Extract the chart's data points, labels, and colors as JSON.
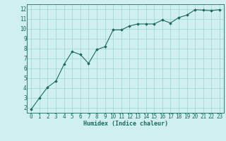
{
  "x": [
    0,
    1,
    2,
    3,
    4,
    5,
    6,
    7,
    8,
    9,
    10,
    11,
    12,
    13,
    14,
    15,
    16,
    17,
    18,
    19,
    20,
    21,
    22,
    23
  ],
  "y": [
    1.85,
    3.0,
    4.1,
    4.7,
    6.4,
    7.7,
    7.4,
    6.5,
    7.9,
    8.2,
    9.9,
    9.9,
    10.3,
    10.5,
    10.5,
    10.5,
    10.9,
    10.6,
    11.15,
    11.4,
    11.95,
    11.9,
    11.85,
    11.95
  ],
  "xlabel": "Humidex (Indice chaleur)",
  "bg_color": "#cff0ee",
  "line_color": "#1a6b5a",
  "grid_color": "#9ed4ce",
  "xlim": [
    -0.5,
    23.5
  ],
  "ylim": [
    1.5,
    12.5
  ],
  "yticks": [
    2,
    3,
    4,
    5,
    6,
    7,
    8,
    9,
    10,
    11,
    12
  ],
  "xticks": [
    0,
    1,
    2,
    3,
    4,
    5,
    6,
    7,
    8,
    9,
    10,
    11,
    12,
    13,
    14,
    15,
    16,
    17,
    18,
    19,
    20,
    21,
    22,
    23
  ],
  "xlabel_fontsize": 6.0,
  "tick_fontsize": 5.5
}
